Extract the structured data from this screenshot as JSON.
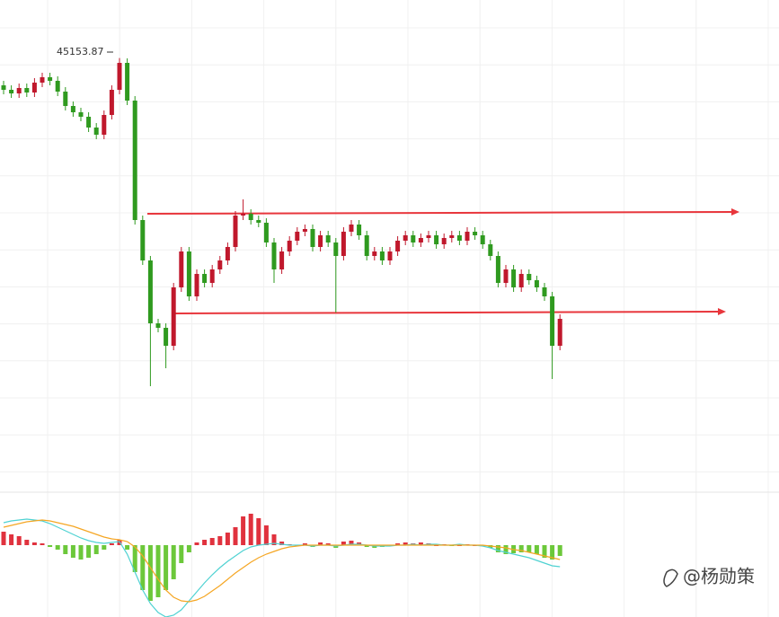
{
  "chart_data": [
    {
      "type": "candlestick",
      "open": [
        44850,
        44800,
        44760,
        44820,
        44770,
        44880,
        44940,
        44900,
        44780,
        44620,
        44550,
        44500,
        44380,
        44300,
        44520,
        44800,
        45100,
        44680,
        43350,
        42900,
        42200,
        42150,
        41950,
        42600,
        43000,
        42500,
        42750,
        42650,
        42800,
        42900,
        43050,
        43400,
        43420,
        43350,
        43320,
        43100,
        42800,
        43000,
        43120,
        43220,
        43250,
        43050,
        43180,
        43100,
        42950,
        43220,
        43300,
        43180,
        42950,
        43000,
        42900,
        43000,
        43120,
        43180,
        43100,
        43150,
        43180,
        43080,
        43150,
        43180,
        43120,
        43220,
        43180,
        43080,
        42950,
        42650,
        42800,
        42600,
        42750,
        42680,
        42600,
        42500,
        41950
      ],
      "high": [
        44900,
        44850,
        44870,
        44870,
        44930,
        44990,
        44990,
        44950,
        44830,
        44670,
        44600,
        44550,
        44430,
        44570,
        44850,
        45153.87,
        45150,
        44730,
        43400,
        42950,
        42250,
        42200,
        42650,
        43050,
        43050,
        42800,
        42800,
        42850,
        42950,
        43100,
        43450,
        43580,
        43470,
        43400,
        43370,
        43150,
        43050,
        43170,
        43270,
        43300,
        43300,
        43230,
        43230,
        43150,
        43270,
        43350,
        43350,
        43230,
        43050,
        43050,
        43050,
        43170,
        43230,
        43230,
        43200,
        43230,
        43230,
        43200,
        43230,
        43230,
        43270,
        43270,
        43230,
        43130,
        43000,
        42850,
        42850,
        42800,
        42800,
        42730,
        42650,
        42550,
        42300
      ],
      "low": [
        44750,
        44710,
        44710,
        44720,
        44720,
        44830,
        44850,
        44730,
        44570,
        44500,
        44450,
        44330,
        44250,
        44250,
        44470,
        44750,
        44630,
        43300,
        42850,
        41500,
        42100,
        41700,
        41900,
        42550,
        42450,
        42450,
        42600,
        42600,
        42750,
        42850,
        43000,
        43350,
        43300,
        43270,
        43050,
        42650,
        42750,
        42950,
        43070,
        43170,
        43000,
        43000,
        43050,
        42320,
        42900,
        43170,
        43130,
        42900,
        42900,
        42850,
        42850,
        42950,
        43070,
        43050,
        43050,
        43100,
        43030,
        43030,
        43100,
        43070,
        43070,
        43130,
        43030,
        42900,
        42600,
        42600,
        42550,
        42550,
        42630,
        42550,
        42450,
        41580,
        41900
      ],
      "close": [
        44800,
        44760,
        44820,
        44770,
        44880,
        44940,
        44900,
        44780,
        44620,
        44550,
        44500,
        44380,
        44300,
        44520,
        44800,
        45100,
        44680,
        43350,
        42900,
        42200,
        42150,
        41950,
        42600,
        43000,
        42500,
        42750,
        42650,
        42800,
        42900,
        43050,
        43400,
        43420,
        43350,
        43320,
        43100,
        42800,
        43000,
        43120,
        43220,
        43250,
        43050,
        43180,
        43100,
        42950,
        43220,
        43300,
        43180,
        42950,
        43000,
        42900,
        43000,
        43120,
        43180,
        43100,
        43150,
        43180,
        43080,
        43150,
        43180,
        43120,
        43220,
        43180,
        43080,
        42950,
        42650,
        42800,
        42600,
        42750,
        42680,
        42600,
        42500,
        41950,
        42250
      ],
      "up_color": "#c0182c",
      "down_color": "#2f9a1f",
      "ylim": [
        40300,
        45800
      ],
      "grid": true
    },
    {
      "type": "macd",
      "values": [
        15,
        12,
        10,
        6,
        3,
        2,
        -2,
        -5,
        -10,
        -14,
        -16,
        -14,
        -10,
        -5,
        2,
        6,
        -5,
        -30,
        -50,
        -62,
        -58,
        -50,
        -38,
        -20,
        -8,
        3,
        6,
        8,
        10,
        14,
        20,
        32,
        35,
        30,
        22,
        12,
        4,
        1,
        0,
        2,
        -2,
        3,
        2,
        -3,
        4,
        5,
        3,
        -2,
        -3,
        -2,
        0,
        2,
        3,
        2,
        3,
        2,
        0,
        1,
        -1,
        0,
        1,
        0,
        -1,
        -3,
        -8,
        -10,
        -9,
        -8,
        -8,
        -10,
        -14,
        -16,
        -12
      ],
      "up_color": "#e0323e",
      "down_color": "#6cc83a",
      "series": [
        {
          "color": "#4fd2d2",
          "values": [
            25,
            27,
            28,
            29,
            28,
            27,
            24,
            20,
            16,
            12,
            8,
            5,
            3,
            2,
            3,
            4,
            -10,
            -30,
            -50,
            -65,
            -75,
            -80,
            -78,
            -72,
            -62,
            -52,
            -42,
            -33,
            -25,
            -18,
            -12,
            -6,
            -2,
            0,
            1,
            2,
            1,
            0,
            0,
            0,
            -1,
            0,
            0,
            -1,
            0,
            1,
            1,
            0,
            -1,
            -1,
            -1,
            0,
            0,
            1,
            0,
            1,
            1,
            0,
            0,
            1,
            0,
            0,
            -1,
            -3,
            -6,
            -8,
            -10,
            -12,
            -14,
            -17,
            -20,
            -23,
            -24
          ]
        },
        {
          "color": "#f5a623",
          "values": [
            20,
            22,
            24,
            26,
            27,
            28,
            27,
            25,
            23,
            21,
            18,
            15,
            12,
            9,
            7,
            6,
            4,
            -2,
            -12,
            -25,
            -38,
            -50,
            -58,
            -62,
            -63,
            -61,
            -57,
            -51,
            -45,
            -38,
            -31,
            -25,
            -19,
            -14,
            -10,
            -7,
            -4,
            -2,
            -1,
            0,
            0,
            0,
            0,
            0,
            0,
            0,
            0,
            0,
            0,
            0,
            0,
            0,
            0,
            0,
            0,
            0,
            0,
            0,
            0,
            0,
            0,
            0,
            0,
            -1,
            -2,
            -3,
            -5,
            -6,
            -8,
            -10,
            -12,
            -14,
            -16
          ]
        }
      ],
      "ylim": [
        -80,
        40
      ]
    }
  ],
  "watermark": "@杨勋策"
}
